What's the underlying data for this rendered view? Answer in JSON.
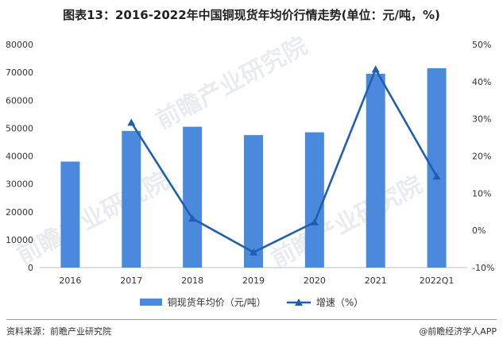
{
  "title": "图表13：2016-2022年中国铜现货年均价行情走势(单位：元/吨，%)",
  "footer": {
    "source": "资料来源：前瞻产业研究院",
    "brand": "@前瞻经济学人APP"
  },
  "watermark": "前瞻产业研究院",
  "colors": {
    "bar": "#4a89dc",
    "line": "#1f5fb3",
    "axis": "#bfbfbf"
  },
  "chart_data": {
    "type": "bar",
    "categories": [
      "2016",
      "2017",
      "2018",
      "2019",
      "2020",
      "2021",
      "2022Q1"
    ],
    "series": [
      {
        "name": "铜现货年均价（元/吨）",
        "type": "bar",
        "axis": "left",
        "values": [
          38000,
          49000,
          50500,
          47500,
          48500,
          69500,
          71500
        ]
      },
      {
        "name": "增速（%）",
        "type": "line",
        "axis": "right",
        "values": [
          null,
          29,
          3.2,
          -5.9,
          2.2,
          43.3,
          14.5
        ]
      }
    ],
    "ylim_left": [
      0,
      80000
    ],
    "yticks_left": [
      "0",
      "10000",
      "20000",
      "30000",
      "40000",
      "50000",
      "60000",
      "70000",
      "80000"
    ],
    "ylim_right": [
      -10,
      50
    ],
    "yticks_right": [
      "-10%",
      "0%",
      "10%",
      "20%",
      "30%",
      "40%",
      "50%"
    ],
    "legend": [
      "铜现货年均价（元/吨）",
      "增速（%）"
    ],
    "legend_position": "bottom",
    "grid": false
  }
}
